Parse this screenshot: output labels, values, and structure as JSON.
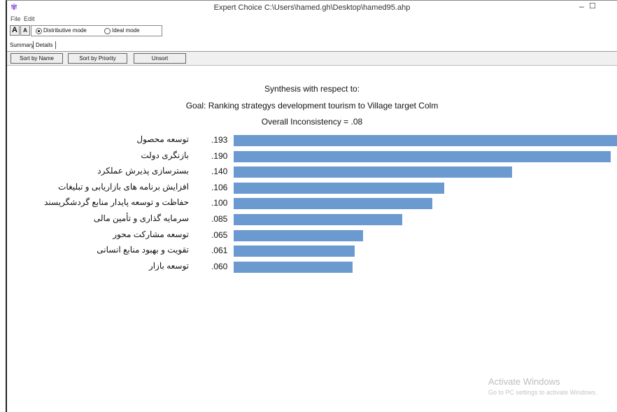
{
  "window": {
    "title": "Expert Choice   C:\\Users\\hamed.gh\\Desktop\\hamed95.ahp",
    "app_icon": "expert-choice-icon",
    "minimize_glyph": "–",
    "maximize_glyph": "☐"
  },
  "menu": {
    "file": "File",
    "edit": "Edit"
  },
  "toolbar": {
    "font_up": "A",
    "font_down": "A",
    "modes": [
      {
        "label": "Distributive mode",
        "selected": true
      },
      {
        "label": "Ideal mode",
        "selected": false
      }
    ]
  },
  "tabs": [
    {
      "label": "Summary"
    },
    {
      "label": "Details"
    }
  ],
  "sort_buttons": [
    {
      "label": "Sort by Name"
    },
    {
      "label": "Sort by Priority"
    },
    {
      "label": "Unsort"
    }
  ],
  "synthesis": {
    "heading": "Synthesis with respect to:",
    "goal": "Goal: Ranking strategys development tourism to Village target Colm",
    "inconsistency": "Overall Inconsistency = .08"
  },
  "chart_data": {
    "type": "bar",
    "orientation": "horizontal",
    "bar_color": "#6b9ad0",
    "xlim": [
      0,
      0.193
    ],
    "categories": [
      "توسعه محصول",
      "بازنگری دولت",
      "بسترسازی پذیرش عملکرد",
      "افزایش برنامه های بازاریابی و تبلیغات",
      "حفاظت و توسعه پایدار منابع گردشگریسند",
      "سرمایه گذاری و تأمین مالی",
      "توسعه مشارکت محور",
      "تقویت و بهبود منابع انسانی",
      "توسعه بازار"
    ],
    "values": [
      0.193,
      0.19,
      0.14,
      0.106,
      0.1,
      0.085,
      0.065,
      0.061,
      0.06
    ],
    "value_labels": [
      ".193",
      ".190",
      ".140",
      ".106",
      ".100",
      ".085",
      ".065",
      ".061",
      ".060"
    ]
  },
  "watermark": {
    "line1": "Activate Windows",
    "line2": "Go to PC settings to activate Windows."
  }
}
